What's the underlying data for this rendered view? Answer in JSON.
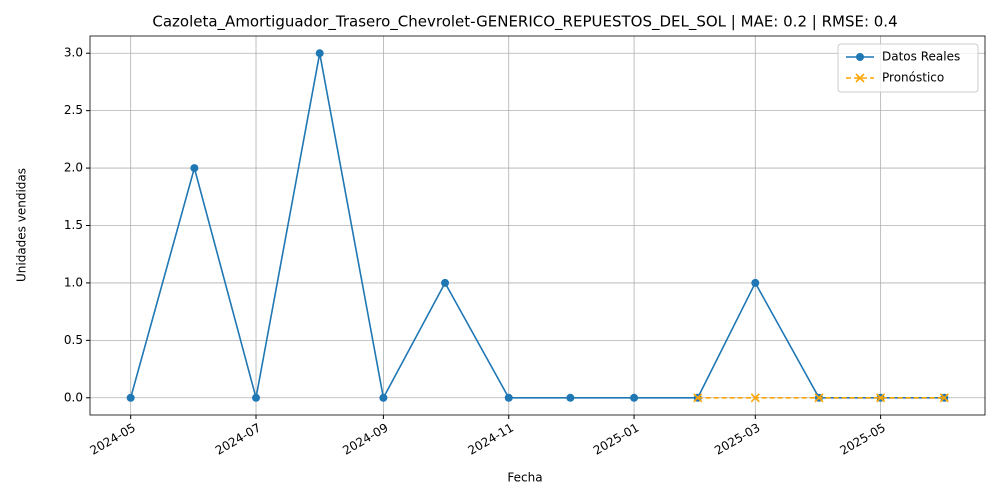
{
  "chart_data": {
    "type": "line",
    "title": "Cazoleta_Amortiguador_Trasero_Chevrolet-GENERICO_REPUESTOS_DEL_SOL | MAE: 0.2 | RMSE: 0.4",
    "x_label": "Fecha",
    "y_label": "Unidades vendidas",
    "x": [
      "2024-05",
      "2024-06",
      "2024-07",
      "2024-08",
      "2024-09",
      "2024-10",
      "2024-11",
      "2024-12",
      "2025-01",
      "2025-02",
      "2025-03",
      "2025-04",
      "2025-05",
      "2025-06"
    ],
    "series": [
      {
        "name": "Datos Reales",
        "color": "#1f77b4",
        "values": [
          0,
          2,
          0,
          3,
          0,
          1,
          0,
          0,
          0,
          0,
          1,
          0,
          0,
          0
        ]
      },
      {
        "name": "Pronóstico",
        "color": "#ffa500",
        "values": [
          null,
          null,
          null,
          null,
          null,
          null,
          null,
          null,
          null,
          0,
          0,
          0,
          0,
          0
        ]
      }
    ],
    "xticks": [
      "2024-05",
      "2024-07",
      "2024-09",
      "2024-11",
      "2025-01",
      "2025-03",
      "2025-05"
    ],
    "ylim": [
      -0.15,
      3.15
    ],
    "yticks": [
      {
        "value": 0,
        "label": "0.0"
      },
      {
        "value": 0.5,
        "label": "0.5"
      },
      {
        "value": 1,
        "label": "1.0"
      },
      {
        "value": 1.5,
        "label": "1.5"
      },
      {
        "value": 2,
        "label": "2.0"
      },
      {
        "value": 2.5,
        "label": "2.5"
      },
      {
        "value": 3,
        "label": "3.0"
      }
    ],
    "grid": true,
    "legend": "upper right"
  }
}
